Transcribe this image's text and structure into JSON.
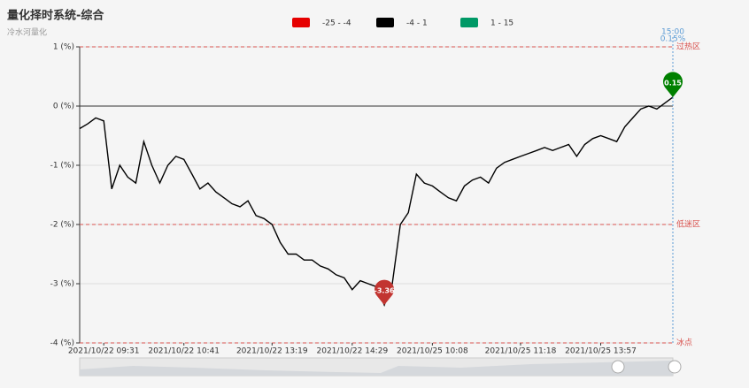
{
  "chart_data": {
    "type": "line",
    "title": "量化择时系统-综合",
    "subtitle": "冷水河量化",
    "pieces": [
      {
        "label": "-25 - -4",
        "color": "#e60000"
      },
      {
        "label": "-4 - 1",
        "color": "#000000"
      },
      {
        "label": "1 - 15",
        "color": "#009966"
      }
    ],
    "categories": [
      null,
      null,
      null,
      "2021/10/22 09:31",
      null,
      null,
      null,
      null,
      null,
      null,
      null,
      null,
      null,
      "2021/10/22 10:41",
      null,
      null,
      null,
      null,
      null,
      null,
      null,
      null,
      null,
      null,
      "2021/10/22 13:19",
      null,
      null,
      null,
      null,
      null,
      null,
      null,
      null,
      null,
      "2021/10/22 14:29",
      null,
      null,
      null,
      null,
      null,
      null,
      null,
      null,
      null,
      "2021/10/25 10:08",
      null,
      null,
      null,
      null,
      null,
      null,
      null,
      null,
      null,
      null,
      "2021/10/25 11:18",
      null,
      null,
      null,
      null,
      null,
      null,
      null,
      null,
      null,
      "2021/10/25 13:57",
      null,
      null,
      null,
      null,
      null,
      null,
      null,
      null,
      null
    ],
    "values": [
      -0.38,
      -0.3,
      -0.2,
      -0.25,
      -1.4,
      -1.0,
      -1.2,
      -1.3,
      -0.6,
      -1.0,
      -1.3,
      -1.0,
      -0.85,
      -0.9,
      -1.15,
      -1.4,
      -1.3,
      -1.45,
      -1.55,
      -1.65,
      -1.7,
      -1.6,
      -1.85,
      -1.9,
      -2.0,
      -2.3,
      -2.5,
      -2.5,
      -2.6,
      -2.6,
      -2.7,
      -2.75,
      -2.85,
      -2.9,
      -3.1,
      -2.95,
      -3.0,
      -3.05,
      -3.36,
      -3.0,
      -2.0,
      -1.8,
      -1.15,
      -1.3,
      -1.35,
      -1.45,
      -1.55,
      -1.6,
      -1.35,
      -1.25,
      -1.2,
      -1.3,
      -1.05,
      -0.95,
      -0.9,
      -0.85,
      -0.8,
      -0.75,
      -0.7,
      -0.75,
      -0.7,
      -0.65,
      -0.85,
      -0.65,
      -0.55,
      -0.5,
      -0.55,
      -0.6,
      -0.35,
      -0.2,
      -0.05,
      0.0,
      -0.05,
      0.05,
      0.15
    ],
    "color": "#000000",
    "ylim": [
      -4,
      1
    ],
    "yticks": [
      {
        "value": 1,
        "label": "1 (%)"
      },
      {
        "value": 0,
        "label": "0 (%)"
      },
      {
        "value": -1,
        "label": "-1 (%)"
      },
      {
        "value": -2,
        "label": "-2 (%)"
      },
      {
        "value": -3,
        "label": "-3 (%)"
      },
      {
        "value": -4,
        "label": "-4 (%)"
      }
    ],
    "grid": true,
    "mark_lines": [
      {
        "value": 1,
        "label": "过热区"
      },
      {
        "value": -2,
        "label": "低迷区"
      },
      {
        "value": -4,
        "label": "冰点"
      }
    ],
    "mark_points": [
      {
        "value": -3.36,
        "color": "#c23531"
      },
      {
        "value": 0.15,
        "color": "#008000"
      }
    ],
    "pointer": {
      "time": "15:00",
      "label": "0.15%"
    }
  }
}
